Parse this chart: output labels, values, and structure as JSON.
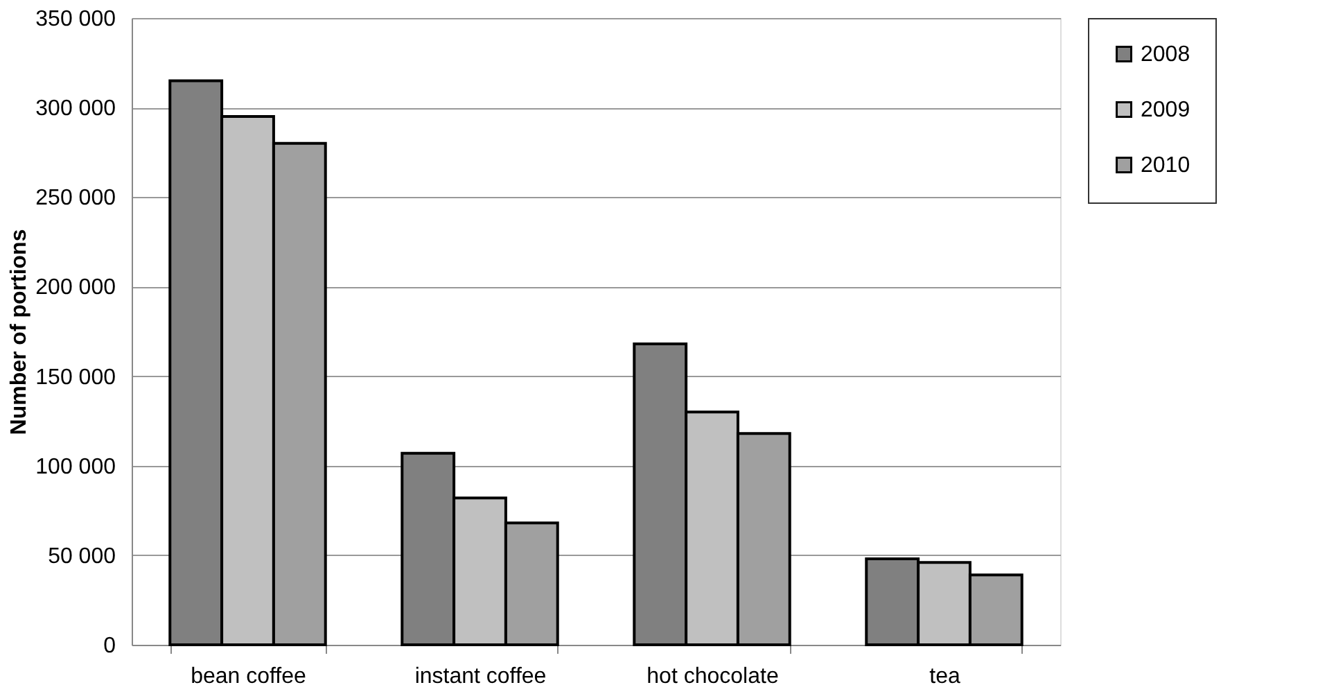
{
  "chart_data": {
    "type": "bar",
    "ylabel": "Number of portions",
    "categories": [
      "bean coffee",
      "instant coffee",
      "hot chocolate",
      "tea"
    ],
    "series": [
      {
        "name": "2008",
        "color": "#808080",
        "values": [
          315000,
          107000,
          168000,
          48000
        ]
      },
      {
        "name": "2009",
        "color": "#c0c0c0",
        "values": [
          295000,
          82000,
          130000,
          46000
        ]
      },
      {
        "name": "2010",
        "color": "#a0a0a0",
        "values": [
          280000,
          68000,
          118000,
          39000
        ]
      }
    ],
    "ylim": [
      0,
      350000
    ],
    "yticks": [
      0,
      {
        "value": 50000,
        "label": "50 000"
      },
      {
        "value": 100000,
        "label": "100 000"
      },
      {
        "value": 150000,
        "label": "150 000"
      },
      {
        "value": 200000,
        "label": "200 000"
      },
      {
        "value": 250000,
        "label": "250 000"
      },
      {
        "value": 300000,
        "label": "300 000"
      },
      {
        "value": 350000,
        "label": "350 000"
      }
    ],
    "grid": "y",
    "legend": "top right"
  }
}
